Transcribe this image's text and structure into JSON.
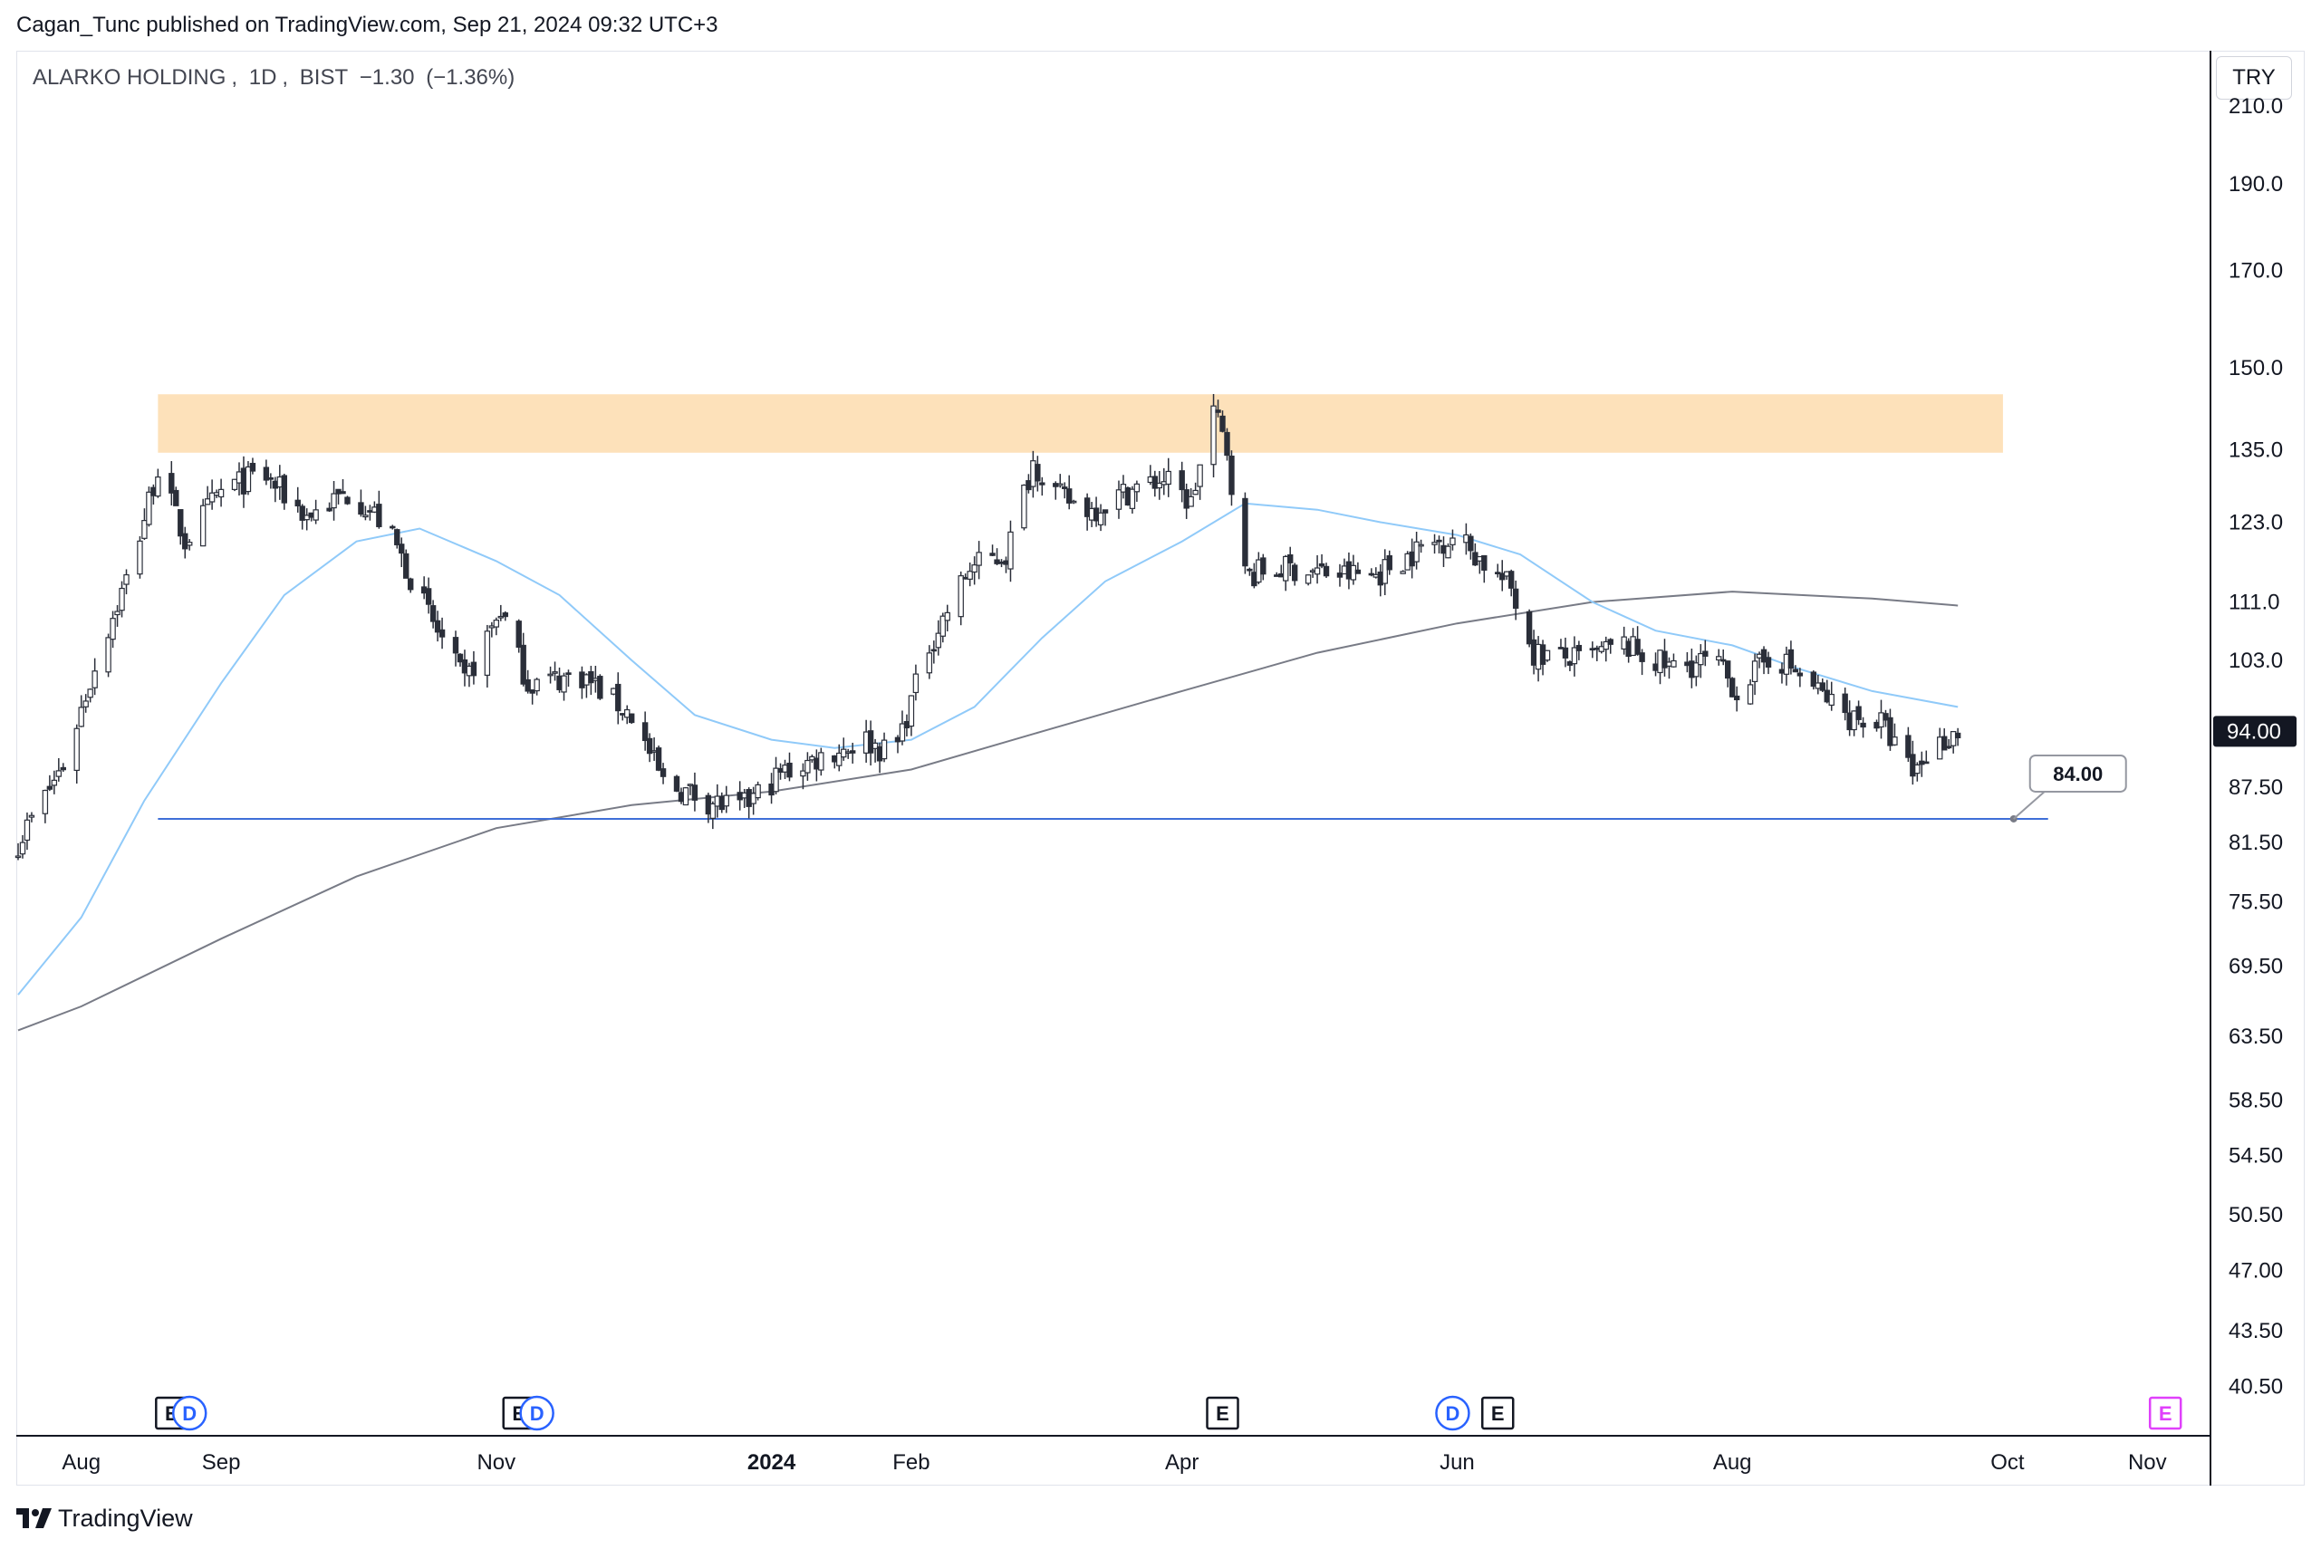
{
  "header": {
    "publisher_line": "Cagan_Tunc published on TradingView.com, Sep 21, 2024 09:32 UTC+3"
  },
  "symbol": {
    "name": "ALARKO HOLDING",
    "interval": "1D",
    "exchange": "BIST",
    "change": "−1.30",
    "change_pct": "(−1.36%)"
  },
  "currency_button": "TRY",
  "footer": {
    "brand": "TradingView"
  },
  "colors": {
    "candle": "#2a2e39",
    "ma50": "#90caf9",
    "ma200": "#787b86",
    "support_line": "#3f6fd8",
    "resistance_zone": "#fddcae",
    "last_price_bg": "#131722",
    "event_E": "#131722",
    "event_D": "#2962ff",
    "event_future": "#e040fb"
  },
  "events": [
    {
      "type": "E",
      "date": "2023-08-21"
    },
    {
      "type": "D",
      "date": "2023-08-25"
    },
    {
      "type": "E",
      "date": "2023-11-06"
    },
    {
      "type": "D",
      "date": "2023-11-10"
    },
    {
      "type": "E",
      "date": "2024-04-10"
    },
    {
      "type": "D",
      "date": "2024-05-31"
    },
    {
      "type": "E",
      "date": "2024-06-10"
    },
    {
      "type": "E",
      "date": "2024-11-05"
    }
  ],
  "chart_data": {
    "type": "candlestick",
    "title": "ALARKO HOLDING, 1D, BIST",
    "y_scale": "log",
    "ylim": [
      38,
      225
    ],
    "y_ticks": [
      "210.0",
      "190.0",
      "170.0",
      "150.0",
      "135.0",
      "123.0",
      "111.0",
      "103.0",
      "94.00",
      "87.50",
      "81.50",
      "75.50",
      "69.50",
      "63.50",
      "58.50",
      "54.50",
      "50.50",
      "47.00",
      "43.50",
      "40.50"
    ],
    "x_range": [
      "2023-07-18",
      "2024-11-15"
    ],
    "x_ticks": [
      {
        "label": "Aug",
        "date": "2023-08-01"
      },
      {
        "label": "Sep",
        "date": "2023-09-01"
      },
      {
        "label": "Nov",
        "date": "2023-11-01"
      },
      {
        "label": "2024",
        "date": "2024-01-01",
        "bold": true
      },
      {
        "label": "Feb",
        "date": "2024-02-01"
      },
      {
        "label": "Apr",
        "date": "2024-04-01"
      },
      {
        "label": "Jun",
        "date": "2024-06-01"
      },
      {
        "label": "Aug",
        "date": "2024-08-01"
      },
      {
        "label": "Oct",
        "date": "2024-10-01"
      },
      {
        "label": "Nov",
        "date": "2024-11-01"
      }
    ],
    "last_price": "94.00",
    "resistance_zone": {
      "from_date": "2023-08-18",
      "to_date": "2024-09-30",
      "low": 134.5,
      "high": 145.0
    },
    "support_line": {
      "from_date": "2023-08-18",
      "to_date": "2024-10-10",
      "value": 84.0,
      "label": "84.00"
    },
    "price_path": [
      {
        "date": "2023-07-18",
        "close": 81.5
      },
      {
        "date": "2023-07-28",
        "close": 90
      },
      {
        "date": "2023-08-05",
        "close": 104
      },
      {
        "date": "2023-08-12",
        "close": 116
      },
      {
        "date": "2023-08-18",
        "close": 132
      },
      {
        "date": "2023-08-24",
        "close": 120
      },
      {
        "date": "2023-09-01",
        "close": 128
      },
      {
        "date": "2023-09-10",
        "close": 131
      },
      {
        "date": "2023-09-20",
        "close": 124
      },
      {
        "date": "2023-09-30",
        "close": 128
      },
      {
        "date": "2023-10-08",
        "close": 122
      },
      {
        "date": "2023-10-18",
        "close": 108
      },
      {
        "date": "2023-10-25",
        "close": 100
      },
      {
        "date": "2023-11-02",
        "close": 110
      },
      {
        "date": "2023-11-08",
        "close": 100
      },
      {
        "date": "2023-11-20",
        "close": 101
      },
      {
        "date": "2023-12-01",
        "close": 96
      },
      {
        "date": "2023-12-08",
        "close": 88
      },
      {
        "date": "2023-12-18",
        "close": 86
      },
      {
        "date": "2023-12-25",
        "close": 85
      },
      {
        "date": "2024-01-03",
        "close": 89
      },
      {
        "date": "2024-01-12",
        "close": 91
      },
      {
        "date": "2024-01-22",
        "close": 93
      },
      {
        "date": "2024-01-28",
        "close": 91
      },
      {
        "date": "2024-02-05",
        "close": 105
      },
      {
        "date": "2024-02-14",
        "close": 116
      },
      {
        "date": "2024-02-22",
        "close": 118
      },
      {
        "date": "2024-02-28",
        "close": 133
      },
      {
        "date": "2024-03-05",
        "close": 127
      },
      {
        "date": "2024-03-12",
        "close": 125
      },
      {
        "date": "2024-03-20",
        "close": 128
      },
      {
        "date": "2024-03-28",
        "close": 130
      },
      {
        "date": "2024-04-03",
        "close": 126
      },
      {
        "date": "2024-04-08",
        "close": 142
      },
      {
        "date": "2024-04-11",
        "close": 135
      },
      {
        "date": "2024-04-15",
        "close": 115
      },
      {
        "date": "2024-04-25",
        "close": 116
      },
      {
        "date": "2024-05-06",
        "close": 115
      },
      {
        "date": "2024-05-14",
        "close": 115
      },
      {
        "date": "2024-05-24",
        "close": 119
      },
      {
        "date": "2024-06-01",
        "close": 121
      },
      {
        "date": "2024-06-08",
        "close": 116
      },
      {
        "date": "2024-06-13",
        "close": 113
      },
      {
        "date": "2024-06-18",
        "close": 104
      },
      {
        "date": "2024-06-28",
        "close": 103
      },
      {
        "date": "2024-07-08",
        "close": 105
      },
      {
        "date": "2024-07-18",
        "close": 102
      },
      {
        "date": "2024-07-28",
        "close": 103
      },
      {
        "date": "2024-08-02",
        "close": 99
      },
      {
        "date": "2024-08-10",
        "close": 104
      },
      {
        "date": "2024-08-18",
        "close": 100
      },
      {
        "date": "2024-08-26",
        "close": 96
      },
      {
        "date": "2024-09-03",
        "close": 95
      },
      {
        "date": "2024-09-10",
        "close": 89
      },
      {
        "date": "2024-09-14",
        "close": 92
      },
      {
        "date": "2024-09-20",
        "close": 94
      }
    ],
    "series": [
      {
        "name": "",
        "kind": "ma50",
        "points": [
          {
            "date": "2023-07-18",
            "value": 67
          },
          {
            "date": "2023-08-01",
            "value": 74
          },
          {
            "date": "2023-08-15",
            "value": 86
          },
          {
            "date": "2023-09-01",
            "value": 100
          },
          {
            "date": "2023-09-15",
            "value": 112
          },
          {
            "date": "2023-10-01",
            "value": 120
          },
          {
            "date": "2023-10-15",
            "value": 122
          },
          {
            "date": "2023-11-01",
            "value": 117
          },
          {
            "date": "2023-11-15",
            "value": 112
          },
          {
            "date": "2023-12-01",
            "value": 103
          },
          {
            "date": "2023-12-15",
            "value": 96
          },
          {
            "date": "2024-01-01",
            "value": 93
          },
          {
            "date": "2024-01-15",
            "value": 92
          },
          {
            "date": "2024-02-01",
            "value": 93
          },
          {
            "date": "2024-02-15",
            "value": 97
          },
          {
            "date": "2024-03-01",
            "value": 106
          },
          {
            "date": "2024-03-15",
            "value": 114
          },
          {
            "date": "2024-04-01",
            "value": 120
          },
          {
            "date": "2024-04-15",
            "value": 126
          },
          {
            "date": "2024-05-01",
            "value": 125
          },
          {
            "date": "2024-05-15",
            "value": 123
          },
          {
            "date": "2024-06-01",
            "value": 121
          },
          {
            "date": "2024-06-15",
            "value": 118
          },
          {
            "date": "2024-07-01",
            "value": 111
          },
          {
            "date": "2024-07-15",
            "value": 107
          },
          {
            "date": "2024-08-01",
            "value": 105
          },
          {
            "date": "2024-08-15",
            "value": 102
          },
          {
            "date": "2024-09-01",
            "value": 99
          },
          {
            "date": "2024-09-20",
            "value": 97
          }
        ]
      },
      {
        "name": "",
        "kind": "ma200",
        "points": [
          {
            "date": "2023-07-18",
            "value": 64
          },
          {
            "date": "2023-08-01",
            "value": 66
          },
          {
            "date": "2023-09-01",
            "value": 72
          },
          {
            "date": "2023-10-01",
            "value": 78
          },
          {
            "date": "2023-11-01",
            "value": 83
          },
          {
            "date": "2023-12-01",
            "value": 85.5
          },
          {
            "date": "2024-01-01",
            "value": 87.0
          },
          {
            "date": "2024-02-01",
            "value": 89.5
          },
          {
            "date": "2024-03-01",
            "value": 94
          },
          {
            "date": "2024-04-01",
            "value": 99
          },
          {
            "date": "2024-05-01",
            "value": 104
          },
          {
            "date": "2024-06-01",
            "value": 108
          },
          {
            "date": "2024-07-01",
            "value": 111
          },
          {
            "date": "2024-08-01",
            "value": 112.5
          },
          {
            "date": "2024-09-01",
            "value": 111.5
          },
          {
            "date": "2024-09-20",
            "value": 110.5
          }
        ]
      }
    ]
  }
}
